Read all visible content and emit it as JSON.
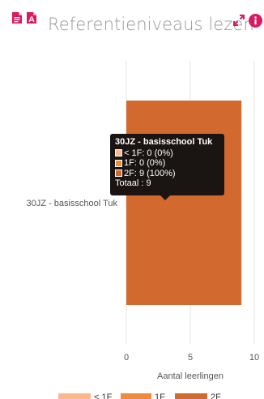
{
  "header": {
    "title": "Referentieniveaus lezen",
    "icons": [
      "file-list-icon",
      "file-pdf-icon",
      "expand-icon",
      "info-icon"
    ],
    "icon_color": "#d81b60"
  },
  "chart_data": {
    "type": "bar",
    "orientation": "horizontal",
    "stacked": true,
    "categories": [
      "30JZ - basisschool Tuk"
    ],
    "series": [
      {
        "name": "< 1F",
        "values": [
          0
        ],
        "color": "#f9b98c"
      },
      {
        "name": "1F",
        "values": [
          0
        ],
        "color": "#ef8b3c"
      },
      {
        "name": "2F",
        "values": [
          9
        ],
        "color": "#d2692f"
      }
    ],
    "xlabel": "Aantal leerlingen",
    "ylabel": "",
    "xlim": [
      0,
      10
    ],
    "xticks": [
      0,
      5,
      10
    ],
    "grid": true,
    "legend": "bottom"
  },
  "tooltip": {
    "title": "30JZ - basisschool Tuk",
    "rows": [
      {
        "text": "< 1F: 0 (0%)",
        "color": "#f9b98c"
      },
      {
        "text": "1F: 0 (0%)",
        "color": "#ef8b3c"
      },
      {
        "text": "2F: 9 (100%)",
        "color": "#d2692f"
      }
    ],
    "total": "Totaal : 9"
  }
}
